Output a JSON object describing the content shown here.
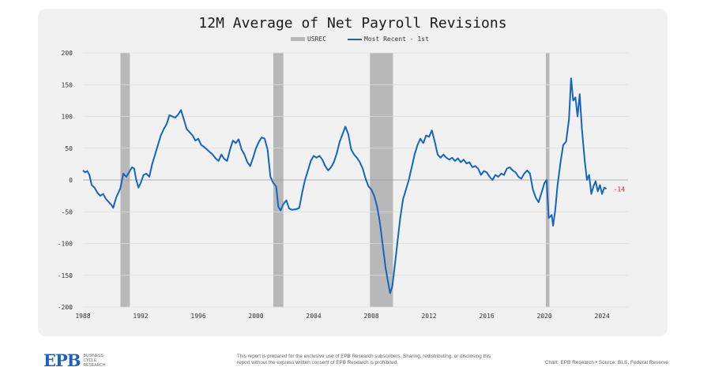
{
  "chart_data": {
    "type": "line",
    "title": "12M Average of Net Payroll Revisions",
    "xlabel": "",
    "ylabel": "",
    "xlim": [
      1988,
      2025.8
    ],
    "ylim": [
      -200,
      200
    ],
    "yticks": [
      200,
      150,
      100,
      50,
      0,
      -50,
      -100,
      -150,
      -200
    ],
    "xticks": [
      1988,
      1992,
      1996,
      2000,
      2004,
      2008,
      2012,
      2016,
      2020,
      2024
    ],
    "ytick_labels": [
      "200",
      "150",
      "100",
      "50",
      "0",
      "-50",
      "-100",
      "-150",
      "-200"
    ],
    "xtick_labels": [
      "1988",
      "1992",
      "1996",
      "2000",
      "2004",
      "2008",
      "2012",
      "2016",
      "2020",
      "2024"
    ],
    "grid": "horizontal",
    "legend_position": "top-center",
    "legend": [
      "USREC",
      "Most Recent - 1st"
    ],
    "recessions": [
      [
        1990.6,
        1991.25
      ],
      [
        2001.2,
        2001.9
      ],
      [
        2007.9,
        2009.5
      ],
      [
        2020.1,
        2020.35
      ]
    ],
    "series": [
      {
        "name": "Most Recent - 1st",
        "color": "#1565c0",
        "points": [
          [
            1988.0,
            15
          ],
          [
            1988.15,
            12
          ],
          [
            1988.3,
            14
          ],
          [
            1988.45,
            8
          ],
          [
            1988.6,
            -8
          ],
          [
            1988.8,
            -12
          ],
          [
            1989.0,
            -20
          ],
          [
            1989.2,
            -25
          ],
          [
            1989.4,
            -22
          ],
          [
            1989.6,
            -30
          ],
          [
            1989.8,
            -35
          ],
          [
            1990.0,
            -40
          ],
          [
            1990.1,
            -44
          ],
          [
            1990.3,
            -28
          ],
          [
            1990.5,
            -18
          ],
          [
            1990.6,
            -12
          ],
          [
            1990.8,
            10
          ],
          [
            1991.0,
            5
          ],
          [
            1991.2,
            12
          ],
          [
            1991.4,
            20
          ],
          [
            1991.55,
            18
          ],
          [
            1991.7,
            0
          ],
          [
            1991.85,
            -12
          ],
          [
            1992.0,
            -5
          ],
          [
            1992.2,
            8
          ],
          [
            1992.4,
            10
          ],
          [
            1992.6,
            5
          ],
          [
            1992.8,
            25
          ],
          [
            1993.0,
            40
          ],
          [
            1993.2,
            55
          ],
          [
            1993.4,
            70
          ],
          [
            1993.6,
            80
          ],
          [
            1993.8,
            88
          ],
          [
            1994.0,
            102
          ],
          [
            1994.2,
            100
          ],
          [
            1994.4,
            98
          ],
          [
            1994.6,
            103
          ],
          [
            1994.8,
            110
          ],
          [
            1995.0,
            95
          ],
          [
            1995.2,
            80
          ],
          [
            1995.4,
            75
          ],
          [
            1995.6,
            70
          ],
          [
            1995.8,
            62
          ],
          [
            1996.0,
            65
          ],
          [
            1996.2,
            55
          ],
          [
            1996.4,
            52
          ],
          [
            1996.6,
            48
          ],
          [
            1996.8,
            44
          ],
          [
            1997.0,
            40
          ],
          [
            1997.2,
            34
          ],
          [
            1997.4,
            30
          ],
          [
            1997.6,
            40
          ],
          [
            1997.8,
            33
          ],
          [
            1998.0,
            30
          ],
          [
            1998.2,
            48
          ],
          [
            1998.4,
            62
          ],
          [
            1998.6,
            58
          ],
          [
            1998.8,
            64
          ],
          [
            1999.0,
            48
          ],
          [
            1999.2,
            40
          ],
          [
            1999.4,
            28
          ],
          [
            1999.6,
            22
          ],
          [
            1999.8,
            35
          ],
          [
            2000.0,
            50
          ],
          [
            2000.2,
            60
          ],
          [
            2000.4,
            67
          ],
          [
            2000.6,
            65
          ],
          [
            2000.8,
            48
          ],
          [
            2001.0,
            5
          ],
          [
            2001.2,
            -5
          ],
          [
            2001.4,
            -10
          ],
          [
            2001.55,
            -42
          ],
          [
            2001.7,
            -48
          ],
          [
            2001.9,
            -38
          ],
          [
            2002.1,
            -32
          ],
          [
            2002.3,
            -45
          ],
          [
            2002.5,
            -47
          ],
          [
            2002.8,
            -46
          ],
          [
            2003.0,
            -44
          ],
          [
            2003.2,
            -20
          ],
          [
            2003.4,
            0
          ],
          [
            2003.6,
            15
          ],
          [
            2003.8,
            30
          ],
          [
            2004.0,
            38
          ],
          [
            2004.2,
            35
          ],
          [
            2004.4,
            38
          ],
          [
            2004.6,
            32
          ],
          [
            2004.8,
            22
          ],
          [
            2005.0,
            15
          ],
          [
            2005.2,
            20
          ],
          [
            2005.4,
            28
          ],
          [
            2005.6,
            42
          ],
          [
            2005.8,
            60
          ],
          [
            2006.0,
            72
          ],
          [
            2006.2,
            84
          ],
          [
            2006.4,
            72
          ],
          [
            2006.6,
            48
          ],
          [
            2006.8,
            40
          ],
          [
            2007.0,
            35
          ],
          [
            2007.2,
            28
          ],
          [
            2007.4,
            18
          ],
          [
            2007.6,
            2
          ],
          [
            2007.8,
            -10
          ],
          [
            2008.0,
            -15
          ],
          [
            2008.2,
            -25
          ],
          [
            2008.4,
            -42
          ],
          [
            2008.6,
            -68
          ],
          [
            2008.8,
            -105
          ],
          [
            2009.0,
            -140
          ],
          [
            2009.15,
            -160
          ],
          [
            2009.3,
            -178
          ],
          [
            2009.45,
            -168
          ],
          [
            2009.6,
            -140
          ],
          [
            2009.8,
            -100
          ],
          [
            2010.0,
            -60
          ],
          [
            2010.2,
            -30
          ],
          [
            2010.4,
            -15
          ],
          [
            2010.6,
            0
          ],
          [
            2010.8,
            20
          ],
          [
            2011.0,
            40
          ],
          [
            2011.2,
            55
          ],
          [
            2011.4,
            65
          ],
          [
            2011.6,
            58
          ],
          [
            2011.8,
            70
          ],
          [
            2012.0,
            68
          ],
          [
            2012.2,
            78
          ],
          [
            2012.4,
            60
          ],
          [
            2012.6,
            40
          ],
          [
            2012.8,
            35
          ],
          [
            2013.0,
            40
          ],
          [
            2013.2,
            35
          ],
          [
            2013.4,
            32
          ],
          [
            2013.6,
            35
          ],
          [
            2013.8,
            30
          ],
          [
            2014.0,
            34
          ],
          [
            2014.2,
            28
          ],
          [
            2014.4,
            32
          ],
          [
            2014.6,
            26
          ],
          [
            2014.8,
            28
          ],
          [
            2015.0,
            20
          ],
          [
            2015.2,
            22
          ],
          [
            2015.4,
            18
          ],
          [
            2015.6,
            8
          ],
          [
            2015.8,
            14
          ],
          [
            2016.0,
            12
          ],
          [
            2016.2,
            5
          ],
          [
            2016.4,
            0
          ],
          [
            2016.6,
            8
          ],
          [
            2016.8,
            5
          ],
          [
            2017.0,
            10
          ],
          [
            2017.2,
            8
          ],
          [
            2017.4,
            18
          ],
          [
            2017.6,
            20
          ],
          [
            2017.8,
            15
          ],
          [
            2018.0,
            12
          ],
          [
            2018.2,
            5
          ],
          [
            2018.4,
            2
          ],
          [
            2018.6,
            10
          ],
          [
            2018.8,
            15
          ],
          [
            2019.0,
            10
          ],
          [
            2019.2,
            -15
          ],
          [
            2019.4,
            -28
          ],
          [
            2019.6,
            -35
          ],
          [
            2019.8,
            -20
          ],
          [
            2020.0,
            -5
          ],
          [
            2020.15,
            0
          ],
          [
            2020.3,
            -60
          ],
          [
            2020.5,
            -55
          ],
          [
            2020.6,
            -72
          ],
          [
            2020.75,
            -48
          ],
          [
            2020.9,
            -10
          ],
          [
            2021.1,
            25
          ],
          [
            2021.3,
            55
          ],
          [
            2021.5,
            60
          ],
          [
            2021.7,
            95
          ],
          [
            2021.85,
            160
          ],
          [
            2022.0,
            125
          ],
          [
            2022.15,
            130
          ],
          [
            2022.3,
            100
          ],
          [
            2022.45,
            135
          ],
          [
            2022.6,
            80
          ],
          [
            2022.8,
            30
          ],
          [
            2022.95,
            0
          ],
          [
            2023.1,
            8
          ],
          [
            2023.25,
            -22
          ],
          [
            2023.4,
            -10
          ],
          [
            2023.55,
            -2
          ],
          [
            2023.7,
            -18
          ],
          [
            2023.85,
            -8
          ],
          [
            2024.0,
            -22
          ],
          [
            2024.15,
            -12
          ],
          [
            2024.3,
            -14
          ]
        ],
        "last_label": "-14"
      }
    ]
  },
  "footer": {
    "logo_text": "EPB",
    "logo_sub": [
      "BUSINESS",
      "CYCLE",
      "RESEARCH"
    ],
    "disclaimer": "This report is prepared for the exclusive use of EPB Research subscribers. Sharing, redistributing, or disclosing this report without the express written consent of EPB Research is prohibited.",
    "source": "Chart: EPB Research  •  Source: BLS, Federal Reserve"
  },
  "colors": {
    "line": "#1565c0",
    "recession": "#b8b8b8",
    "last_label": "#cc2222",
    "panel": "#f1f1f1",
    "grid": "#dedede"
  }
}
